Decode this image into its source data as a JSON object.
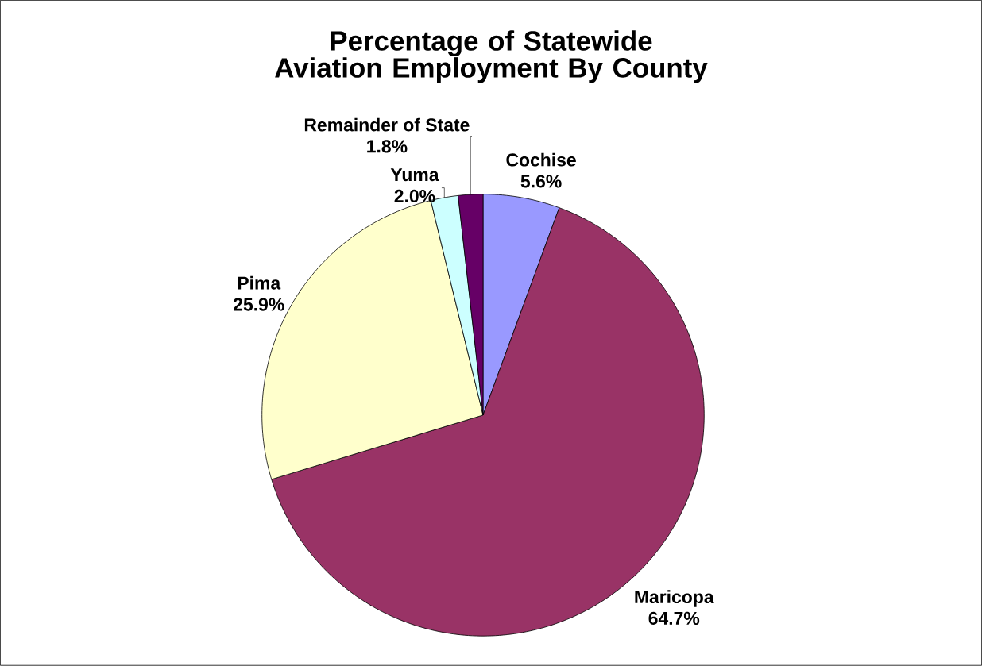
{
  "chart_data": {
    "type": "pie",
    "title": "Percentage of Statewide Aviation Employment By County",
    "categories": [
      "Cochise",
      "Maricopa",
      "Pima",
      "Yuma",
      "Remainder of State"
    ],
    "values": [
      5.6,
      64.7,
      25.9,
      2.0,
      1.8
    ],
    "colors": [
      "#9999ff",
      "#993366",
      "#ffffcc",
      "#ccffff",
      "#660066"
    ],
    "value_labels": [
      "5.6%",
      "64.7%",
      "25.9%",
      "2.0%",
      "1.8%"
    ]
  }
}
